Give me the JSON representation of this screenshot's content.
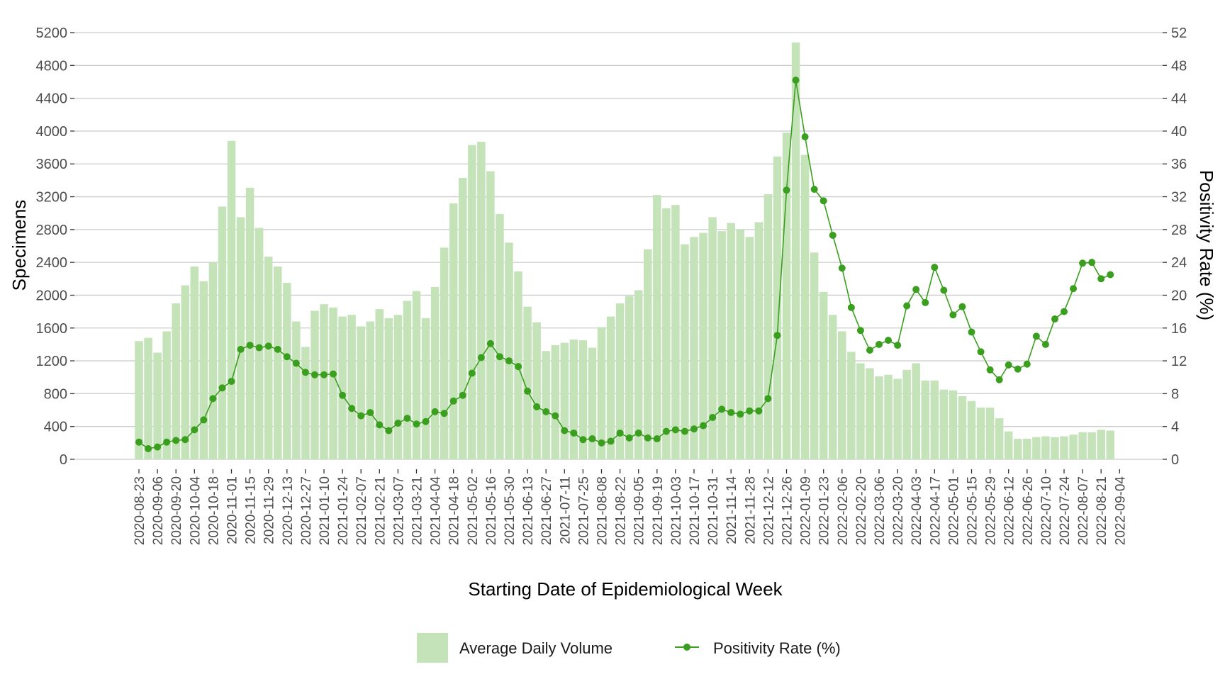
{
  "chart_data": {
    "type": "bar+line",
    "title": "",
    "xlabel": "Starting Date of Epidemiological Week",
    "ylabel": "Specimens",
    "y2label": "Positivity Rate (%)",
    "ylim": [
      0,
      5200
    ],
    "y2lim": [
      0,
      52
    ],
    "yticks": [
      0,
      400,
      800,
      1200,
      1600,
      2000,
      2400,
      2800,
      3200,
      3600,
      4000,
      4400,
      4800,
      5200
    ],
    "y2ticks": [
      0,
      4,
      8,
      12,
      16,
      20,
      24,
      28,
      32,
      36,
      40,
      44,
      48,
      52
    ],
    "x_start": "2020-08-23",
    "x_tick_labels": [
      "2020-08-23",
      "2020-09-06",
      "2020-09-20",
      "2020-10-04",
      "2020-10-18",
      "2020-11-01",
      "2020-11-15",
      "2020-11-29",
      "2020-12-13",
      "2020-12-27",
      "2021-01-10",
      "2021-01-24",
      "2021-02-07",
      "2021-02-21",
      "2021-03-07",
      "2021-03-21",
      "2021-04-04",
      "2021-04-18",
      "2021-05-02",
      "2021-05-16",
      "2021-05-30",
      "2021-06-13",
      "2021-06-27",
      "2021-07-11",
      "2021-07-25",
      "2021-08-08",
      "2021-08-22",
      "2021-09-05",
      "2021-09-19",
      "2021-10-03",
      "2021-10-17",
      "2021-10-31",
      "2021-11-14",
      "2021-11-28",
      "2021-12-12",
      "2021-12-26",
      "2022-01-09",
      "2022-01-23",
      "2022-02-06",
      "2022-02-20",
      "2022-03-06",
      "2022-03-20",
      "2022-04-03",
      "2022-04-17",
      "2022-05-01",
      "2022-05-15",
      "2022-05-29",
      "2022-06-12",
      "2022-06-26",
      "2022-07-10",
      "2022-07-24",
      "2022-08-07",
      "2022-08-21",
      "2022-09-04"
    ],
    "grid": true,
    "legend_position": "bottom",
    "series": [
      {
        "name": "Average Daily Volume",
        "type": "bar",
        "axis": "left",
        "color": "#c5e3b8",
        "values": [
          1440,
          1480,
          1300,
          1560,
          1900,
          2120,
          2350,
          2170,
          2400,
          3080,
          3880,
          2950,
          3310,
          2820,
          2470,
          2350,
          2150,
          1680,
          1370,
          1810,
          1890,
          1850,
          1740,
          1760,
          1620,
          1680,
          1830,
          1720,
          1760,
          1930,
          2050,
          1720,
          2100,
          2580,
          3120,
          3430,
          3830,
          3870,
          3510,
          2990,
          2640,
          2290,
          1860,
          1670,
          1320,
          1390,
          1420,
          1460,
          1450,
          1360,
          1610,
          1740,
          1900,
          1990,
          2060,
          2560,
          3220,
          3060,
          3100,
          2620,
          2710,
          2760,
          2950,
          2780,
          2880,
          2800,
          2710,
          2890,
          3230,
          3690,
          3980,
          5080,
          3710,
          2520,
          2040,
          1760,
          1560,
          1310,
          1170,
          1110,
          1010,
          1030,
          980,
          1090,
          1170,
          960,
          960,
          850,
          840,
          770,
          710,
          630,
          630,
          500,
          340,
          250,
          250,
          270,
          280,
          270,
          280,
          300,
          330,
          330,
          360,
          350
        ]
      },
      {
        "name": "Positivity Rate (%)",
        "type": "line",
        "axis": "right",
        "color": "#3a9f1e",
        "values": [
          2.1,
          1.3,
          1.5,
          2.1,
          2.3,
          2.4,
          3.6,
          4.8,
          7.4,
          8.7,
          9.5,
          13.4,
          13.9,
          13.6,
          13.8,
          13.4,
          12.5,
          11.7,
          10.6,
          10.3,
          10.3,
          10.4,
          7.8,
          6.2,
          5.3,
          5.7,
          4.2,
          3.5,
          4.4,
          5.0,
          4.3,
          4.6,
          5.8,
          5.6,
          7.1,
          7.8,
          10.5,
          12.4,
          14.1,
          12.5,
          12.0,
          11.3,
          8.3,
          6.4,
          5.8,
          5.3,
          3.5,
          3.2,
          2.4,
          2.5,
          2.0,
          2.2,
          3.2,
          2.6,
          3.2,
          2.6,
          2.5,
          3.4,
          3.6,
          3.4,
          3.7,
          4.1,
          5.1,
          6.1,
          5.7,
          5.5,
          5.9,
          5.9,
          7.4,
          15.1,
          32.8,
          46.2,
          39.3,
          32.9,
          31.5,
          27.3,
          23.3,
          18.5,
          15.7,
          13.3,
          14.0,
          14.5,
          13.9,
          18.7,
          20.7,
          19.1,
          23.4,
          20.6,
          17.6,
          18.6,
          15.5,
          13.1,
          10.9,
          9.7,
          11.5,
          11.0,
          11.6,
          15.0,
          14.0,
          17.1,
          18.0,
          20.8,
          23.9,
          24.0,
          22.0,
          22.5
        ]
      }
    ]
  }
}
